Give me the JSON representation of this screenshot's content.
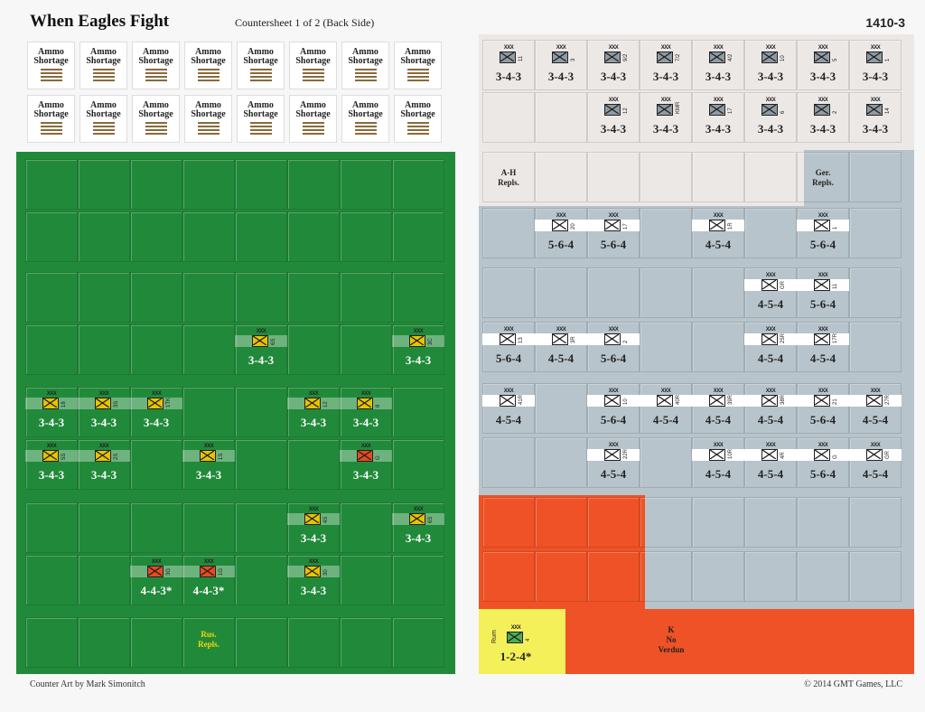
{
  "header": {
    "title": "When Eagles Fight",
    "subtitle": "Countersheet 1 of 2 (Back Side)",
    "code": "1410-3"
  },
  "footer": {
    "credit": "Counter Art by Mark Simonitch",
    "copyright": "© 2014 GMT Games, LLC"
  },
  "ammo": {
    "label_line1": "Ammo",
    "label_line2": "Shortage",
    "count": 16
  },
  "colors": {
    "russian_green": "#218a3a",
    "german_grey": "#b7c4cb",
    "ah_white": "#ece8e6",
    "red_zone": "#ef5226",
    "rumania_yellow": "#f4f05a"
  },
  "russian_units": [
    {
      "r": 3,
      "c": 4,
      "str": "3-4-3",
      "id": "6S",
      "red": false
    },
    {
      "r": 3,
      "c": 7,
      "str": "3-4-3",
      "id": "3C",
      "red": false
    },
    {
      "r": 4,
      "c": 0,
      "str": "3-4-3",
      "id": "18",
      "red": false
    },
    {
      "r": 4,
      "c": 1,
      "str": "3-4-3",
      "id": "3S",
      "red": false
    },
    {
      "r": 4,
      "c": 2,
      "str": "3-4-3",
      "id": "1TK",
      "red": false
    },
    {
      "r": 4,
      "c": 5,
      "str": "3-4-3",
      "id": "12",
      "red": false
    },
    {
      "r": 4,
      "c": 6,
      "str": "3-4-3",
      "id": "8",
      "red": false
    },
    {
      "r": 5,
      "c": 0,
      "str": "3-4-3",
      "id": "5S",
      "red": false
    },
    {
      "r": 5,
      "c": 1,
      "str": "3-4-3",
      "id": "2S",
      "red": false
    },
    {
      "r": 5,
      "c": 3,
      "str": "3-4-3",
      "id": "1S",
      "red": false
    },
    {
      "r": 5,
      "c": 6,
      "str": "3-4-3",
      "id": "G",
      "red": true
    },
    {
      "r": 6,
      "c": 5,
      "str": "3-4-3",
      "id": "4S",
      "red": false
    },
    {
      "r": 6,
      "c": 7,
      "str": "3-4-3",
      "id": "6S",
      "red": false
    },
    {
      "r": 7,
      "c": 2,
      "str": "4-4-3*",
      "id": "3G",
      "red": true
    },
    {
      "r": 7,
      "c": 3,
      "str": "4-4-3*",
      "id": "1G",
      "red": true
    },
    {
      "r": 7,
      "c": 5,
      "str": "3-4-3",
      "id": "30",
      "red": false
    }
  ],
  "russian_repl_label": "Rus.\nRepls.",
  "ah_units": [
    {
      "r": 0,
      "c": 0,
      "str": "3-4-3",
      "id": "11"
    },
    {
      "r": 0,
      "c": 1,
      "str": "3-4-3",
      "id": "3"
    },
    {
      "r": 0,
      "c": 2,
      "str": "3-4-3",
      "id": "9/2"
    },
    {
      "r": 0,
      "c": 3,
      "str": "3-4-3",
      "id": "7/2"
    },
    {
      "r": 0,
      "c": 4,
      "str": "3-4-3",
      "id": "4/2"
    },
    {
      "r": 0,
      "c": 5,
      "str": "3-4-3",
      "id": "10"
    },
    {
      "r": 0,
      "c": 6,
      "str": "3-4-3",
      "id": "5"
    },
    {
      "r": 0,
      "c": 7,
      "str": "3-4-3",
      "id": "1"
    },
    {
      "r": 1,
      "c": 2,
      "str": "3-4-3",
      "id": "12"
    },
    {
      "r": 1,
      "c": 3,
      "str": "3-4-3",
      "id": "KMR"
    },
    {
      "r": 1,
      "c": 4,
      "str": "3-4-3",
      "id": "17"
    },
    {
      "r": 1,
      "c": 5,
      "str": "3-4-3",
      "id": "6"
    },
    {
      "r": 1,
      "c": 6,
      "str": "3-4-3",
      "id": "2"
    },
    {
      "r": 1,
      "c": 7,
      "str": "3-4-3",
      "id": "14"
    }
  ],
  "ah_repl_label": "A-H\nRepls.",
  "ger_repl_label": "Ger.\nRepls.",
  "ger_units": [
    {
      "r": 3,
      "c": 1,
      "str": "5-6-4",
      "id": "20"
    },
    {
      "r": 3,
      "c": 2,
      "str": "5-6-4",
      "id": "17"
    },
    {
      "r": 3,
      "c": 4,
      "str": "4-5-4",
      "id": "1R"
    },
    {
      "r": 3,
      "c": 6,
      "str": "5-6-4",
      "id": "1"
    },
    {
      "r": 4,
      "c": 5,
      "str": "4-5-4",
      "id": "GR"
    },
    {
      "r": 4,
      "c": 6,
      "str": "5-6-4",
      "id": "11"
    },
    {
      "r": 5,
      "c": 0,
      "str": "5-6-4",
      "id": "13"
    },
    {
      "r": 5,
      "c": 1,
      "str": "4-5-4",
      "id": "3R"
    },
    {
      "r": 5,
      "c": 2,
      "str": "5-6-4",
      "id": "2"
    },
    {
      "r": 5,
      "c": 5,
      "str": "4-5-4",
      "id": "25R"
    },
    {
      "r": 5,
      "c": 6,
      "str": "4-5-4",
      "id": "17R"
    },
    {
      "r": 6,
      "c": 0,
      "str": "4-5-4",
      "id": "41R"
    },
    {
      "r": 6,
      "c": 2,
      "str": "5-6-4",
      "id": "10"
    },
    {
      "r": 6,
      "c": 3,
      "str": "4-5-4",
      "id": "40R"
    },
    {
      "r": 6,
      "c": 4,
      "str": "4-5-4",
      "id": "39R"
    },
    {
      "r": 6,
      "c": 5,
      "str": "4-5-4",
      "id": "38R"
    },
    {
      "r": 6,
      "c": 6,
      "str": "5-6-4",
      "id": "21"
    },
    {
      "r": 6,
      "c": 7,
      "str": "4-5-4",
      "id": "27R"
    },
    {
      "r": 7,
      "c": 2,
      "str": "4-5-4",
      "id": "22R"
    },
    {
      "r": 7,
      "c": 4,
      "str": "4-5-4",
      "id": "10R"
    },
    {
      "r": 7,
      "c": 5,
      "str": "4-5-4",
      "id": "4R"
    },
    {
      "r": 7,
      "c": 6,
      "str": "5-6-4",
      "id": "G"
    },
    {
      "r": 7,
      "c": 7,
      "str": "4-5-4",
      "id": "GR"
    }
  ],
  "rum_unit": {
    "str": "1-2-4*",
    "id": "4",
    "nation": "Rum"
  },
  "k_label": "K\nNo\nVerdun"
}
